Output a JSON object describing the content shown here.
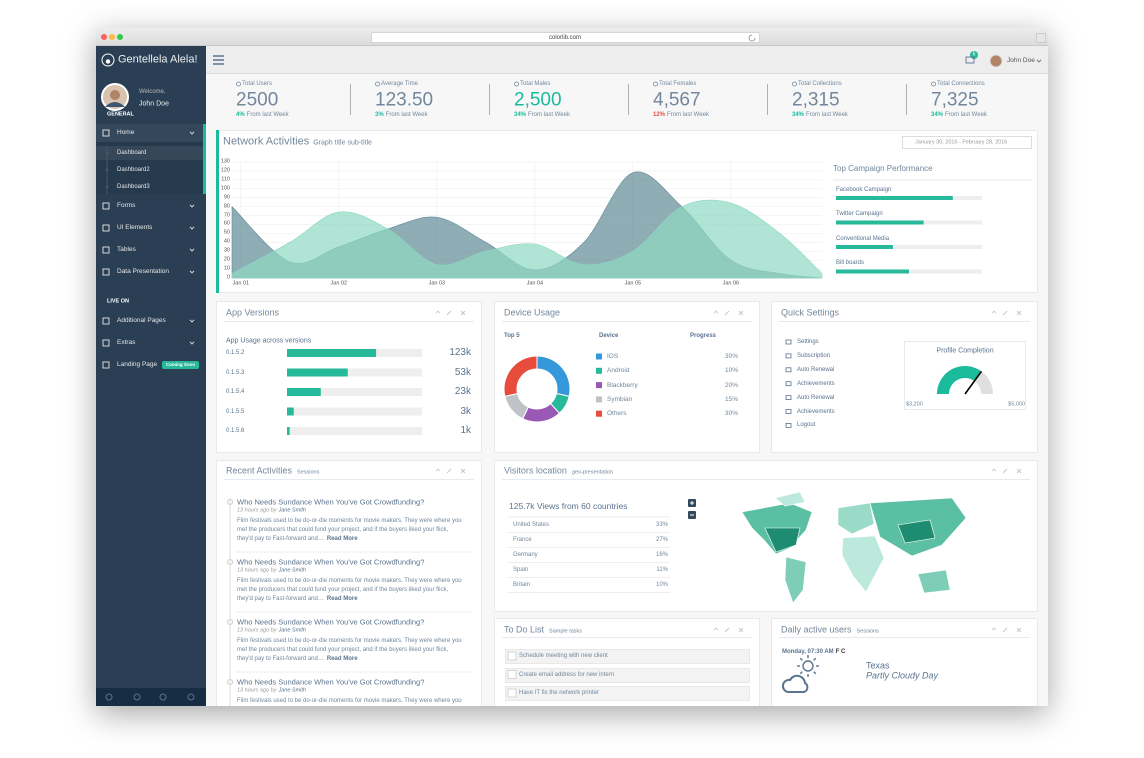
{
  "browser": {
    "url": "colorlib.com"
  },
  "sidebar": {
    "brand": "Gentellela Alela!",
    "welcome": "Welcome,",
    "user": "John Doe",
    "section1": "GENERAL",
    "menu": [
      "Home",
      "Forms",
      "UI Elements",
      "Tables",
      "Data Presentation"
    ],
    "submenu": [
      "Dashboard",
      "Dashboard2",
      "Dashboard3"
    ],
    "section2": "LIVE ON",
    "menu2": [
      "Additional Pages",
      "Extras",
      "Landing Page"
    ],
    "badge": "Coming Soon"
  },
  "topbar": {
    "mail_count": "6",
    "user": "John Doe"
  },
  "stats": [
    {
      "label": "Total Users",
      "value": "2500",
      "change": "4%",
      "note": "From last Week",
      "change_color": "#1ABB9C"
    },
    {
      "label": "Average Time",
      "value": "123.50",
      "change": "3%",
      "note": "From last Week",
      "change_color": "#1ABB9C"
    },
    {
      "label": "Total Males",
      "value": "2,500",
      "change": "34%",
      "note": "From last Week",
      "change_color": "#1ABB9C",
      "value_color": "#1ABB9C"
    },
    {
      "label": "Total Females",
      "value": "4,567",
      "change": "12%",
      "note": "From last Week",
      "change_color": "#E74C3C"
    },
    {
      "label": "Total Collections",
      "value": "2,315",
      "change": "34%",
      "note": "From last Week",
      "change_color": "#1ABB9C"
    },
    {
      "label": "Total Connections",
      "value": "7,325",
      "change": "34%",
      "note": "From last Week",
      "change_color": "#1ABB9C"
    }
  ],
  "network": {
    "title": "Network Activities",
    "subtitle": "Graph title sub-title",
    "date_range": "January 30, 2016 - February 28, 2016",
    "chart": {
      "type": "area",
      "x": [
        -0.09,
        0.5,
        1,
        1.5,
        2,
        2.5,
        3,
        3.5,
        4,
        4.5,
        5,
        5.5,
        5.93
      ],
      "series": [
        {
          "name": "series-1",
          "color": "#5F8A95",
          "values": [
            80,
            18,
            35,
            55,
            68,
            40,
            9,
            40,
            118,
            80,
            20,
            5,
            0
          ]
        },
        {
          "name": "series-2",
          "color": "#8ED8C2",
          "values": [
            5,
            40,
            74,
            55,
            15,
            30,
            38,
            15,
            30,
            80,
            84,
            50,
            5
          ]
        }
      ],
      "xlim": [
        -0.09,
        5.93
      ],
      "xticks": [
        {
          "value": 0,
          "label": "Jan 01"
        },
        {
          "value": 1,
          "label": "Jan 02"
        },
        {
          "value": 2,
          "label": "Jan 03"
        },
        {
          "value": 3,
          "label": "Jan 04"
        },
        {
          "value": 4,
          "label": "Jan 05"
        },
        {
          "value": 5,
          "label": "Jan 06"
        }
      ],
      "ylim": [
        0,
        130
      ],
      "yticks": [
        0,
        10,
        20,
        30,
        40,
        50,
        60,
        70,
        80,
        90,
        100,
        110,
        120,
        130
      ],
      "grid": true
    },
    "campaign": {
      "title": "Top Campaign Performance",
      "xlim": [
        0,
        100
      ],
      "color": "#26B99A",
      "items": [
        {
          "name": "Facebook Campaign",
          "value": 80
        },
        {
          "name": "Twitter Campaign",
          "value": 60
        },
        {
          "name": "Conventional Media",
          "value": 39
        },
        {
          "name": "Bill boards",
          "value": 50
        }
      ]
    }
  },
  "app_versions": {
    "title": "App Versions",
    "subtitle": "App Usage across versions",
    "xlim": [
      0,
      100
    ],
    "color": "#26B99A",
    "rows": [
      {
        "label": "0.1.5.2",
        "progress": 66,
        "usage": "123k"
      },
      {
        "label": "0.1.5.3",
        "progress": 45,
        "usage": "53k"
      },
      {
        "label": "0.1.5.4",
        "progress": 25,
        "usage": "23k"
      },
      {
        "label": "0.1.5.5",
        "progress": 5,
        "usage": "3k"
      },
      {
        "label": "0.1.5.6",
        "progress": 2,
        "usage": "1k"
      }
    ]
  },
  "device_usage": {
    "title": "Device Usage",
    "headers": [
      "Top 5",
      "Device",
      "Progress"
    ],
    "devices": [
      "IOS",
      "Android",
      "Blackberry",
      "Symbian",
      "Others"
    ],
    "colors": [
      "#3498DB",
      "#26B99A",
      "#9B59B6",
      "#BDC3C7",
      "#E74C3C"
    ],
    "values": [
      30,
      10,
      20,
      15,
      30
    ],
    "value_labels": [
      "30%",
      "10%",
      "20%",
      "15%",
      "30%"
    ]
  },
  "quick_settings": {
    "title": "Quick Settings",
    "items": [
      "Settings",
      "Subscription",
      "Auto Renewal",
      "Achievements",
      "Auto Renewal",
      "Achievements",
      "Logout"
    ],
    "profile": {
      "title": "Profile Completion",
      "min_label": "$3,200",
      "max_label": "$5,000"
    }
  },
  "recent_activities": {
    "title": "Recent Activities",
    "subtitle": "Sessions",
    "items": [
      {
        "title": "Who Needs Sundance When You've Got Crowdfunding?",
        "time": "13 hours ago by",
        "author": "Jane Smith",
        "body": "Film festivals used to be do-or-die moments for movie makers. They were where you met the producers that could fund your project, and if the buyers liked your flick, they'd pay to Fast-forward and…",
        "link": "Read More"
      },
      {
        "title": "Who Needs Sundance When You've Got Crowdfunding?",
        "time": "13 hours ago by",
        "author": "Jane Smith",
        "body": "Film festivals used to be do-or-die moments for movie makers. They were where you met the producers that could fund your project, and if the buyers liked your flick, they'd pay to Fast-forward and…",
        "link": "Read More"
      },
      {
        "title": "Who Needs Sundance When You've Got Crowdfunding?",
        "time": "13 hours ago by",
        "author": "Jane Smith",
        "body": "Film festivals used to be do-or-die moments for movie makers. They were where you met the producers that could fund your project, and if the buyers liked your flick, they'd pay to Fast-forward and…",
        "link": "Read More"
      },
      {
        "title": "Who Needs Sundance When You've Got Crowdfunding?",
        "time": "13 hours ago by",
        "author": "Jane Smith",
        "body": "Film festivals used to be do-or-die moments for movie makers. They were where you met the producers that could fund your project, and if the buyers liked your flick, they'd pay to Fast-forward and…",
        "link": "Read More"
      }
    ]
  },
  "visitors": {
    "title": "Visitors location",
    "subtitle": "geo-presentation",
    "headline": "125.7k Views from 60 countries",
    "rows": [
      [
        "United States",
        "33%"
      ],
      [
        "France",
        "27%"
      ],
      [
        "Germany",
        "16%"
      ],
      [
        "Spain",
        "11%"
      ],
      [
        "Britain",
        "10%"
      ]
    ]
  },
  "todo": {
    "title": "To Do List",
    "subtitle": "Sample tasks",
    "items": [
      "Schedule meeting with new client",
      "Create email address for new intern",
      "Have IT fix the network printer"
    ]
  },
  "daily": {
    "title": "Daily active users",
    "subtitle": "Sessions",
    "date": "Monday, 07:30 AM",
    "units": "F C",
    "location": "Texas",
    "condition": "Partly Cloudy Day"
  }
}
